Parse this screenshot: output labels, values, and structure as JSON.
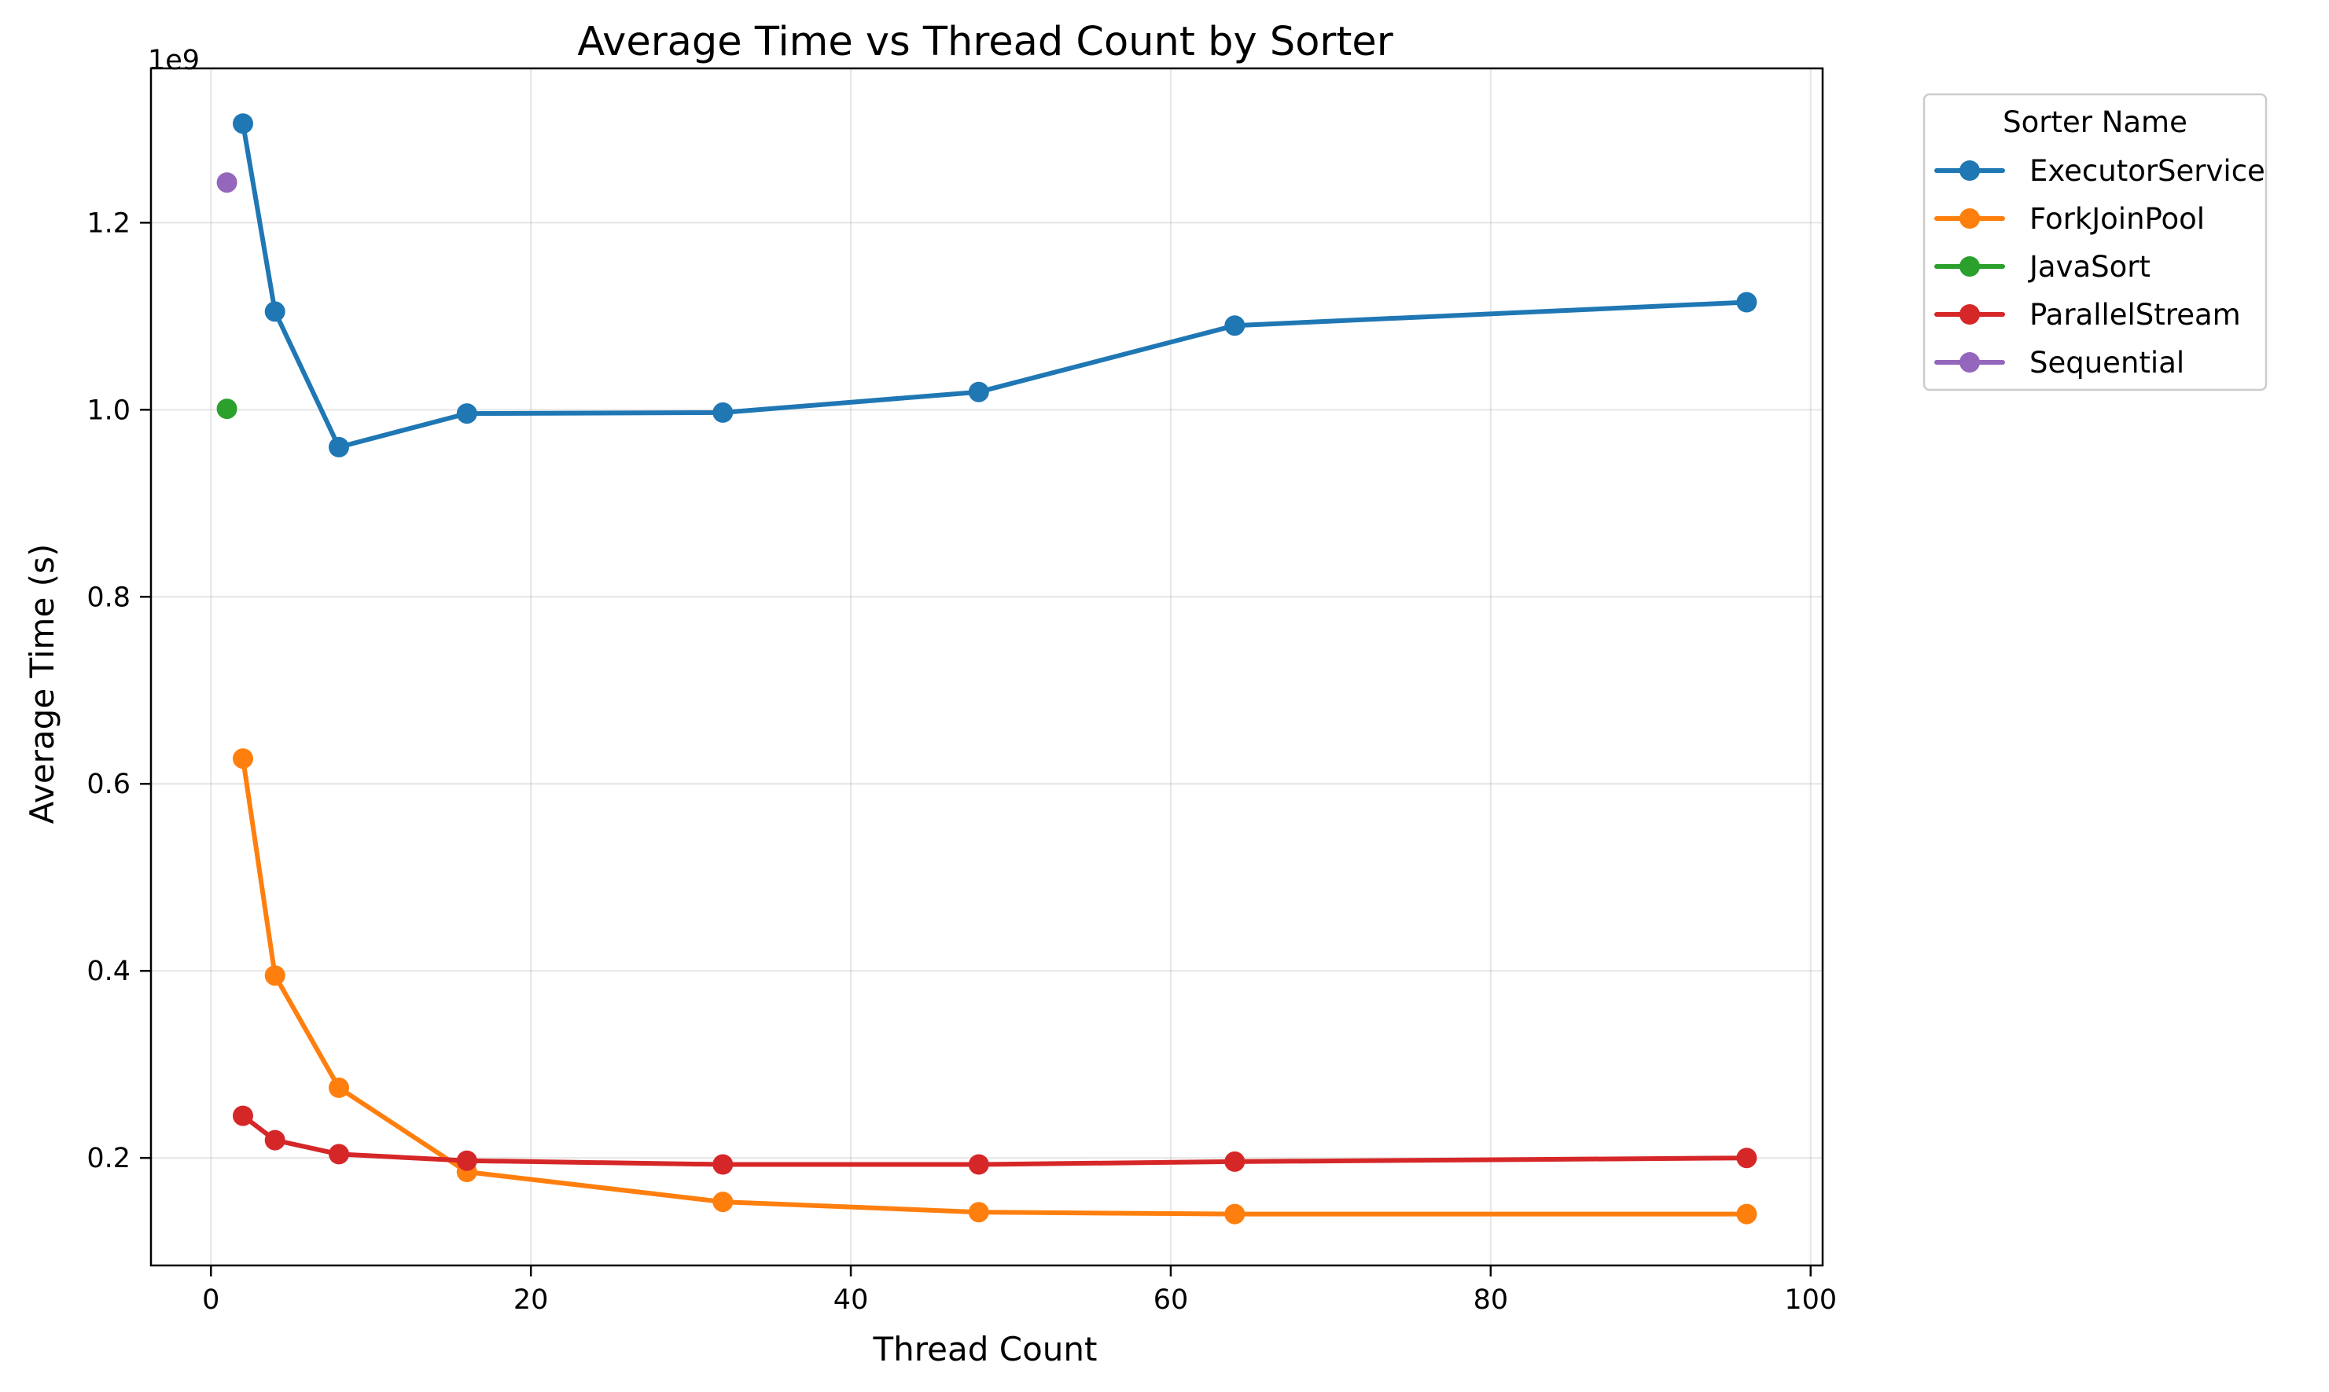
{
  "chart_data": {
    "type": "line",
    "title": "Average Time vs Thread Count by Sorter",
    "xlabel": "Thread Count",
    "ylabel": "Average Time (s)",
    "y_offset_label": "1e9",
    "xlim": [
      -3.75,
      100.75
    ],
    "ylim": [
      0.085,
      1.365
    ],
    "x_ticks": [
      0,
      20,
      40,
      60,
      80,
      100
    ],
    "x_tick_labels": [
      "0",
      "20",
      "40",
      "60",
      "80",
      "100"
    ],
    "y_ticks": [
      0.2,
      0.4,
      0.6,
      0.8,
      1.0,
      1.2
    ],
    "y_tick_labels": [
      "0.2",
      "0.4",
      "0.6",
      "0.8",
      "1.0",
      "1.2"
    ],
    "grid": true,
    "legend": {
      "title": "Sorter Name",
      "placement": "outside-top-right"
    },
    "series": [
      {
        "name": "ExecutorService",
        "color": "#1f77b4",
        "x": [
          2,
          4,
          8,
          16,
          32,
          48,
          64,
          96
        ],
        "y": [
          1.306,
          1.105,
          0.96,
          0.996,
          0.997,
          1.019,
          1.09,
          1.115
        ]
      },
      {
        "name": "ForkJoinPool",
        "color": "#ff7f0e",
        "x": [
          2,
          4,
          8,
          16,
          32,
          48,
          64,
          96
        ],
        "y": [
          0.627,
          0.395,
          0.275,
          0.185,
          0.153,
          0.142,
          0.14,
          0.14
        ]
      },
      {
        "name": "JavaSort",
        "color": "#2ca02c",
        "x": [
          1
        ],
        "y": [
          1.001
        ]
      },
      {
        "name": "ParallelStream",
        "color": "#d62728",
        "x": [
          2,
          4,
          8,
          16,
          32,
          48,
          64,
          96
        ],
        "y": [
          0.245,
          0.219,
          0.204,
          0.197,
          0.193,
          0.193,
          0.196,
          0.2
        ]
      },
      {
        "name": "Sequential",
        "color": "#9467bd",
        "x": [
          1
        ],
        "y": [
          1.243
        ]
      }
    ]
  }
}
